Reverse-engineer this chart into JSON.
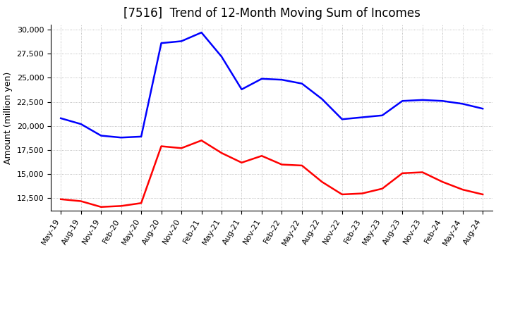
{
  "title": "[7516]  Trend of 12-Month Moving Sum of Incomes",
  "ylabel": "Amount (million yen)",
  "x_labels": [
    "May-19",
    "Aug-19",
    "Nov-19",
    "Feb-20",
    "May-20",
    "Aug-20",
    "Nov-20",
    "Feb-21",
    "May-21",
    "Aug-21",
    "Nov-21",
    "Feb-22",
    "May-22",
    "Aug-22",
    "Nov-22",
    "Feb-23",
    "May-23",
    "Aug-23",
    "Nov-23",
    "Feb-24",
    "May-24",
    "Aug-24"
  ],
  "ordinary_income": [
    20800,
    20200,
    19000,
    18800,
    18900,
    28600,
    28800,
    29700,
    27200,
    23800,
    24900,
    24800,
    24400,
    22800,
    20700,
    20900,
    21100,
    22600,
    22700,
    22600,
    22300,
    21800
  ],
  "net_income": [
    12400,
    12200,
    11600,
    11700,
    12000,
    17900,
    17700,
    18500,
    17200,
    16200,
    16900,
    16000,
    15900,
    14200,
    12900,
    13000,
    13500,
    15100,
    15200,
    14200,
    13400,
    12900
  ],
  "ordinary_income_color": "#0000FF",
  "net_income_color": "#FF0000",
  "ylim_min": 11200,
  "ylim_max": 30500,
  "yticks": [
    12500,
    15000,
    17500,
    20000,
    22500,
    25000,
    27500,
    30000
  ],
  "background_color": "#FFFFFF",
  "grid_color": "#AAAAAA",
  "title_fontsize": 12,
  "ylabel_fontsize": 9,
  "tick_fontsize": 8,
  "legend_fontsize": 10
}
